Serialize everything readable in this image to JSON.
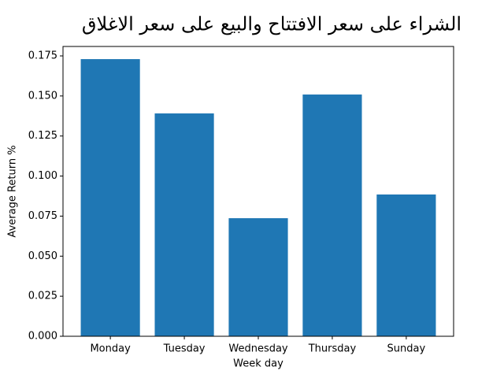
{
  "chart_data": {
    "type": "bar",
    "title": "الشراء على سعر الافتتاح والبيع على سعر الاغلاق",
    "x_label": "Week day",
    "y_label": "Average Return %",
    "categories": [
      "Monday",
      "Tuesday",
      "Wednesday",
      "Thursday",
      "Sunday"
    ],
    "values": [
      0.173,
      0.1391,
      0.0737,
      0.1509,
      0.0885
    ],
    "color": "#1f77b4",
    "ylim": [
      0,
      0.1809
    ],
    "yticks": [
      {
        "value": 0,
        "label": "0.000"
      },
      0.025,
      {
        "value": 0.05,
        "label": "0.050"
      },
      0.075,
      {
        "value": 0.1,
        "label": "0.100"
      },
      0.125,
      {
        "value": 0.15,
        "label": "0.150"
      },
      0.175
    ],
    "grid": false
  }
}
